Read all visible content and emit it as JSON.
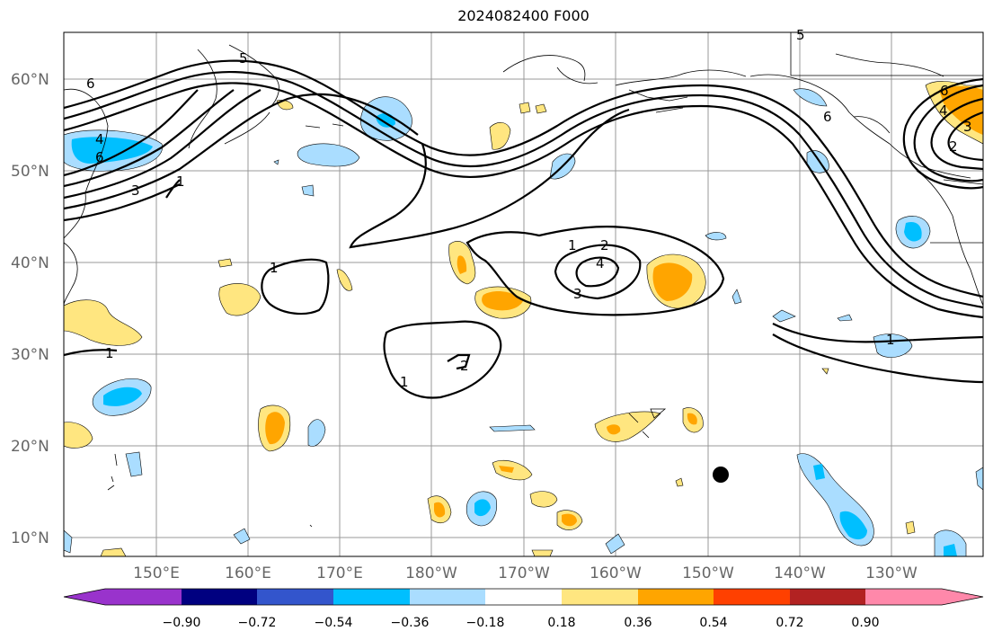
{
  "title": "2024082400 F000",
  "lat_labels": [
    "60°N",
    "50°N",
    "40°N",
    "30°N",
    "20°N",
    "10°N"
  ],
  "lon_labels": [
    "150°E",
    "160°E",
    "170°E",
    "180°W",
    "170°W",
    "160°W",
    "150°W",
    "140°W",
    "130°W"
  ],
  "colorbar": {
    "tick_labels": [
      "−0.90",
      "−0.72",
      "−0.54",
      "−0.36",
      "−0.18",
      "0.18",
      "0.36",
      "0.54",
      "0.72",
      "0.90"
    ],
    "colors": [
      "#9933cc",
      "#000080",
      "#3355cc",
      "#00bfff",
      "#aaddff",
      "#ffffff",
      "#ffe680",
      "#ffa500",
      "#ff4000",
      "#b22222",
      "#ff88aa"
    ]
  },
  "contour_labels": [
    "6",
    "5",
    "4",
    "6",
    "3",
    "1",
    "1",
    "1",
    "2",
    "4",
    "3",
    "1",
    "2",
    "1",
    "6",
    "6",
    "4",
    "2",
    "3",
    "1",
    "5"
  ],
  "marker": {
    "type": "storm-position",
    "lat": "17°N",
    "lon": "148°W"
  }
}
